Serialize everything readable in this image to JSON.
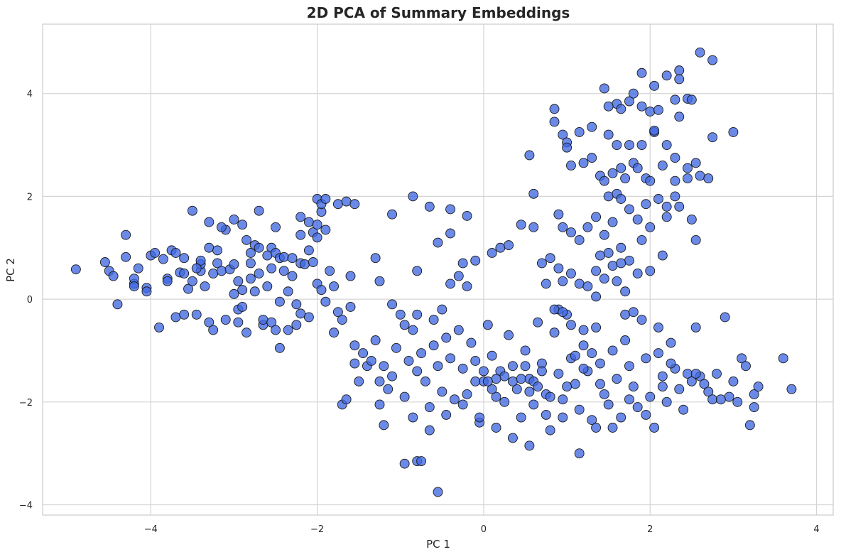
{
  "chart_data": {
    "type": "scatter",
    "title": "2D PCA of Summary Embeddings",
    "xlabel": "PC 1",
    "ylabel": "PC 2",
    "xlim": [
      -5.3,
      4.2
    ],
    "ylim": [
      -4.2,
      5.35
    ],
    "xticks": [
      -4,
      -2,
      0,
      2,
      4
    ],
    "yticks": [
      -4,
      -2,
      0,
      2,
      4
    ],
    "xtick_labels": [
      "−4",
      "−2",
      "0",
      "2",
      "4"
    ],
    "ytick_labels": [
      "−4",
      "−2",
      "0",
      "2",
      "4"
    ],
    "grid": true,
    "colors": {
      "point_fill": "#4169e1",
      "point_edge": "#1a1a1a",
      "grid": "#d4d4d4",
      "axes": "#cccccc",
      "text": "#262626"
    },
    "points": [
      [
        -4.9,
        0.58
      ],
      [
        -4.55,
        0.72
      ],
      [
        -4.5,
        0.55
      ],
      [
        -4.45,
        0.45
      ],
      [
        -4.4,
        -0.1
      ],
      [
        -4.3,
        0.82
      ],
      [
        -4.3,
        1.25
      ],
      [
        -4.2,
        0.3
      ],
      [
        -4.2,
        0.4
      ],
      [
        -4.2,
        0.25
      ],
      [
        -4.15,
        0.6
      ],
      [
        -4.05,
        0.22
      ],
      [
        -4.05,
        0.15
      ],
      [
        -4.0,
        0.85
      ],
      [
        -3.95,
        0.9
      ],
      [
        -3.9,
        -0.55
      ],
      [
        -3.85,
        0.78
      ],
      [
        -3.8,
        0.4
      ],
      [
        -3.8,
        0.35
      ],
      [
        -3.75,
        0.95
      ],
      [
        -3.7,
        0.9
      ],
      [
        -3.7,
        -0.35
      ],
      [
        -3.65,
        0.52
      ],
      [
        -3.6,
        0.8
      ],
      [
        -3.55,
        0.2
      ],
      [
        -3.5,
        0.35
      ],
      [
        -3.45,
        -0.3
      ],
      [
        -3.4,
        0.55
      ],
      [
        -3.4,
        0.68
      ],
      [
        -3.4,
        0.75
      ],
      [
        -3.35,
        0.25
      ],
      [
        -3.3,
        1.0
      ],
      [
        -3.25,
        0.5
      ],
      [
        -3.2,
        0.7
      ],
      [
        -3.15,
        0.55
      ],
      [
        -3.1,
        1.35
      ],
      [
        -3.05,
        0.58
      ],
      [
        -3.0,
        0.68
      ],
      [
        -2.95,
        -0.45
      ],
      [
        -2.95,
        -0.2
      ],
      [
        -2.95,
        0.35
      ],
      [
        -2.9,
        0.18
      ],
      [
        -2.85,
        1.15
      ],
      [
        -2.8,
        0.4
      ],
      [
        -2.8,
        0.7
      ],
      [
        -2.75,
        1.05
      ],
      [
        -2.7,
        0.5
      ],
      [
        -2.7,
        1.0
      ],
      [
        -2.65,
        -0.5
      ],
      [
        -2.6,
        0.25
      ],
      [
        -2.55,
        0.6
      ],
      [
        -2.55,
        1.0
      ],
      [
        -2.5,
        1.4
      ],
      [
        -2.45,
        -0.05
      ],
      [
        -2.4,
        0.55
      ],
      [
        -2.35,
        0.15
      ],
      [
        -2.3,
        0.45
      ],
      [
        -2.25,
        -0.1
      ],
      [
        -2.2,
        0.7
      ],
      [
        -2.15,
        0.68
      ],
      [
        -2.1,
        0.95
      ],
      [
        -2.05,
        0.72
      ],
      [
        -2.0,
        0.3
      ],
      [
        -1.95,
        0.18
      ],
      [
        -1.9,
        -0.05
      ],
      [
        -1.85,
        0.55
      ],
      [
        -1.8,
        0.25
      ],
      [
        -1.75,
        -0.25
      ],
      [
        -1.7,
        -0.4
      ],
      [
        -1.6,
        0.45
      ],
      [
        -3.5,
        1.72
      ],
      [
        -3.3,
        1.5
      ],
      [
        -3.15,
        1.4
      ],
      [
        -3.0,
        1.55
      ],
      [
        -2.9,
        1.45
      ],
      [
        -2.7,
        1.72
      ],
      [
        -2.6,
        0.85
      ],
      [
        -2.5,
        0.9
      ],
      [
        -2.45,
        0.8
      ],
      [
        -2.4,
        0.82
      ],
      [
        -2.3,
        0.8
      ],
      [
        -2.2,
        1.25
      ],
      [
        -2.2,
        1.6
      ],
      [
        -2.1,
        1.5
      ],
      [
        -2.05,
        1.3
      ],
      [
        -2.0,
        1.45
      ],
      [
        -2.0,
        1.95
      ],
      [
        -1.95,
        1.7
      ],
      [
        -1.95,
        1.85
      ],
      [
        -1.9,
        1.95
      ],
      [
        -3.6,
        -0.3
      ],
      [
        -3.3,
        -0.45
      ],
      [
        -3.25,
        -0.6
      ],
      [
        -3.1,
        -0.4
      ],
      [
        -2.9,
        -0.15
      ],
      [
        -2.85,
        -0.65
      ],
      [
        -2.65,
        -0.4
      ],
      [
        -2.55,
        -0.45
      ],
      [
        -2.5,
        -0.6
      ],
      [
        -2.35,
        -0.6
      ],
      [
        -2.25,
        -0.5
      ],
      [
        -2.2,
        -0.28
      ],
      [
        -2.1,
        -0.35
      ],
      [
        -2.45,
        -0.95
      ],
      [
        -2.8,
        0.9
      ],
      [
        -3.2,
        0.95
      ],
      [
        -3.45,
        0.6
      ],
      [
        -3.6,
        0.5
      ],
      [
        -3.0,
        0.1
      ],
      [
        -2.75,
        0.15
      ],
      [
        -2.0,
        1.2
      ],
      [
        -1.9,
        1.35
      ],
      [
        -1.75,
        1.85
      ],
      [
        -1.65,
        1.9
      ],
      [
        -1.55,
        1.85
      ],
      [
        -1.1,
        1.65
      ],
      [
        -0.85,
        2.0
      ],
      [
        -0.65,
        1.8
      ],
      [
        -0.4,
        1.75
      ],
      [
        -0.2,
        1.62
      ],
      [
        -0.8,
        0.55
      ],
      [
        -0.55,
        1.1
      ],
      [
        -0.4,
        1.28
      ],
      [
        -0.25,
        0.7
      ],
      [
        -0.1,
        0.75
      ],
      [
        0.1,
        0.9
      ],
      [
        0.2,
        1.0
      ],
      [
        0.3,
        1.05
      ],
      [
        0.45,
        1.45
      ],
      [
        0.6,
        1.4
      ],
      [
        -1.3,
        0.8
      ],
      [
        -1.25,
        0.35
      ],
      [
        -1.1,
        -0.1
      ],
      [
        -0.95,
        -0.5
      ],
      [
        -0.8,
        -0.3
      ],
      [
        -0.6,
        -0.4
      ],
      [
        -0.5,
        -0.2
      ],
      [
        -0.4,
        0.3
      ],
      [
        -0.3,
        0.45
      ],
      [
        -0.2,
        0.25
      ],
      [
        -1.8,
        -0.65
      ],
      [
        -1.6,
        -0.15
      ],
      [
        -1.55,
        -0.9
      ],
      [
        -1.5,
        -1.6
      ],
      [
        -1.45,
        -1.05
      ],
      [
        -1.4,
        -1.3
      ],
      [
        -1.35,
        -1.2
      ],
      [
        -1.3,
        -0.8
      ],
      [
        -1.25,
        -1.6
      ],
      [
        -1.2,
        -1.3
      ],
      [
        -1.15,
        -1.75
      ],
      [
        -1.1,
        -1.5
      ],
      [
        -1.05,
        -0.95
      ],
      [
        -1.0,
        -0.3
      ],
      [
        -0.95,
        -1.9
      ],
      [
        -0.9,
        -1.2
      ],
      [
        -0.85,
        -0.6
      ],
      [
        -0.8,
        -1.4
      ],
      [
        -0.75,
        -1.05
      ],
      [
        -0.7,
        -1.6
      ],
      [
        -0.65,
        -2.1
      ],
      [
        -0.6,
        -0.9
      ],
      [
        -0.55,
        -1.3
      ],
      [
        -0.5,
        -1.8
      ],
      [
        -0.45,
        -0.75
      ],
      [
        -0.4,
        -1.15
      ],
      [
        -0.35,
        -1.95
      ],
      [
        -0.3,
        -0.6
      ],
      [
        -0.25,
        -1.35
      ],
      [
        -0.2,
        -1.85
      ],
      [
        -0.15,
        -0.85
      ],
      [
        -0.1,
        -1.2
      ],
      [
        -0.05,
        -2.4
      ],
      [
        0.0,
        -1.6
      ],
      [
        0.05,
        -0.5
      ],
      [
        0.1,
        -1.1
      ],
      [
        0.15,
        -1.9
      ],
      [
        0.2,
        -1.4
      ],
      [
        0.25,
        -2.0
      ],
      [
        0.3,
        -0.7
      ],
      [
        0.35,
        -1.3
      ],
      [
        0.4,
        -1.75
      ],
      [
        0.45,
        -2.3
      ],
      [
        0.5,
        -1.0
      ],
      [
        0.55,
        -1.55
      ],
      [
        0.6,
        -2.05
      ],
      [
        0.65,
        -0.45
      ],
      [
        0.7,
        -1.25
      ],
      [
        0.75,
        -1.85
      ],
      [
        0.8,
        -2.55
      ],
      [
        0.85,
        -0.65
      ],
      [
        0.9,
        -1.45
      ],
      [
        0.95,
        -1.95
      ],
      [
        1.0,
        -0.3
      ],
      [
        1.05,
        -1.15
      ],
      [
        1.1,
        -1.65
      ],
      [
        1.15,
        -2.15
      ],
      [
        1.2,
        -0.9
      ],
      [
        1.25,
        -1.4
      ],
      [
        1.3,
        -2.35
      ],
      [
        1.35,
        -0.55
      ],
      [
        1.4,
        -1.25
      ],
      [
        1.45,
        -1.85
      ],
      [
        1.5,
        -2.05
      ],
      [
        1.55,
        -1.0
      ],
      [
        1.6,
        -1.55
      ],
      [
        1.65,
        -2.3
      ],
      [
        1.7,
        -0.8
      ],
      [
        1.75,
        -1.3
      ],
      [
        1.8,
        -1.7
      ],
      [
        1.85,
        -2.1
      ],
      [
        1.9,
        -0.4
      ],
      [
        1.95,
        -1.15
      ],
      [
        2.0,
        -1.9
      ],
      [
        2.05,
        -2.5
      ],
      [
        2.1,
        -1.05
      ],
      [
        2.15,
        -1.5
      ],
      [
        2.2,
        -2.0
      ],
      [
        2.25,
        -0.85
      ],
      [
        2.3,
        -1.35
      ],
      [
        2.35,
        -1.75
      ],
      [
        2.4,
        -2.15
      ],
      [
        2.45,
        -1.45
      ],
      [
        2.5,
        -1.6
      ],
      [
        2.55,
        -0.55
      ],
      [
        2.6,
        -1.5
      ],
      [
        2.65,
        -1.65
      ],
      [
        2.7,
        -1.8
      ],
      [
        2.75,
        -1.95
      ],
      [
        2.8,
        -1.45
      ],
      [
        2.9,
        -0.35
      ],
      [
        2.95,
        -1.9
      ],
      [
        3.0,
        -1.6
      ],
      [
        3.05,
        -2.0
      ],
      [
        3.1,
        -1.15
      ],
      [
        3.15,
        -1.3
      ],
      [
        3.2,
        -2.45
      ],
      [
        3.25,
        -1.85
      ],
      [
        3.3,
        -1.7
      ],
      [
        3.6,
        -1.15
      ],
      [
        3.7,
        -1.75
      ],
      [
        3.25,
        -2.1
      ],
      [
        2.85,
        -1.95
      ],
      [
        2.55,
        -1.45
      ],
      [
        2.25,
        -1.25
      ],
      [
        2.15,
        -1.7
      ],
      [
        1.95,
        -2.25
      ],
      [
        1.75,
        -1.95
      ],
      [
        1.55,
        -2.5
      ],
      [
        1.35,
        -2.5
      ],
      [
        1.15,
        -3.0
      ],
      [
        0.95,
        -2.3
      ],
      [
        0.75,
        -2.25
      ],
      [
        0.55,
        -2.85
      ],
      [
        0.35,
        -2.7
      ],
      [
        0.15,
        -2.5
      ],
      [
        -0.05,
        -2.3
      ],
      [
        -0.25,
        -2.05
      ],
      [
        -0.45,
        -2.25
      ],
      [
        -0.65,
        -2.55
      ],
      [
        -0.85,
        -2.3
      ],
      [
        -0.95,
        -3.2
      ],
      [
        -0.8,
        -3.15
      ],
      [
        -0.75,
        -3.15
      ],
      [
        -0.55,
        -3.75
      ],
      [
        -1.2,
        -2.45
      ],
      [
        -1.25,
        -2.05
      ],
      [
        -1.7,
        -2.05
      ],
      [
        -1.65,
        -1.95
      ],
      [
        -1.55,
        -1.25
      ],
      [
        0.5,
        -1.3
      ],
      [
        0.6,
        -1.6
      ],
      [
        0.7,
        -1.4
      ],
      [
        0.8,
        -1.9
      ],
      [
        0.9,
        -0.2
      ],
      [
        1.0,
        -1.7
      ],
      [
        1.1,
        -1.1
      ],
      [
        1.2,
        -1.35
      ],
      [
        1.3,
        -1.05
      ],
      [
        1.4,
        -1.65
      ],
      [
        0.25,
        -1.5
      ],
      [
        0.15,
        -1.55
      ],
      [
        0.1,
        -1.75
      ],
      [
        0.05,
        -1.6
      ],
      [
        0.0,
        -1.4
      ],
      [
        -0.1,
        -1.6
      ],
      [
        0.35,
        -1.6
      ],
      [
        0.45,
        -1.55
      ],
      [
        0.55,
        -1.8
      ],
      [
        0.65,
        -1.7
      ],
      [
        1.9,
        4.4
      ],
      [
        2.05,
        4.15
      ],
      [
        2.2,
        4.35
      ],
      [
        2.35,
        4.45
      ],
      [
        2.35,
        4.28
      ],
      [
        2.6,
        4.8
      ],
      [
        2.75,
        4.65
      ],
      [
        2.45,
        3.9
      ],
      [
        2.5,
        3.88
      ],
      [
        1.6,
        3.8
      ],
      [
        1.75,
        3.85
      ],
      [
        1.9,
        3.75
      ],
      [
        2.0,
        3.65
      ],
      [
        2.1,
        3.68
      ],
      [
        2.3,
        3.88
      ],
      [
        2.35,
        3.55
      ],
      [
        1.45,
        4.1
      ],
      [
        1.5,
        3.75
      ],
      [
        1.65,
        3.7
      ],
      [
        1.8,
        4.0
      ],
      [
        0.85,
        3.7
      ],
      [
        0.85,
        3.45
      ],
      [
        0.95,
        3.2
      ],
      [
        1.0,
        3.05
      ],
      [
        1.0,
        2.95
      ],
      [
        1.15,
        3.25
      ],
      [
        1.3,
        3.35
      ],
      [
        1.5,
        3.2
      ],
      [
        1.6,
        3.0
      ],
      [
        1.75,
        3.0
      ],
      [
        1.9,
        3.0
      ],
      [
        2.05,
        3.25
      ],
      [
        2.05,
        3.28
      ],
      [
        2.2,
        3.0
      ],
      [
        2.3,
        2.75
      ],
      [
        2.45,
        2.55
      ],
      [
        2.55,
        2.65
      ],
      [
        2.75,
        3.15
      ],
      [
        3.0,
        3.25
      ],
      [
        2.6,
        2.4
      ],
      [
        0.55,
        2.8
      ],
      [
        0.6,
        2.05
      ],
      [
        1.05,
        2.6
      ],
      [
        1.2,
        2.65
      ],
      [
        1.3,
        2.75
      ],
      [
        1.4,
        2.4
      ],
      [
        1.45,
        2.3
      ],
      [
        1.55,
        2.45
      ],
      [
        1.65,
        2.55
      ],
      [
        1.7,
        2.35
      ],
      [
        1.8,
        2.65
      ],
      [
        1.85,
        2.55
      ],
      [
        1.95,
        2.35
      ],
      [
        2.0,
        2.3
      ],
      [
        2.15,
        2.6
      ],
      [
        2.3,
        2.3
      ],
      [
        2.45,
        2.35
      ],
      [
        2.7,
        2.35
      ],
      [
        1.5,
        2.0
      ],
      [
        1.6,
        2.05
      ],
      [
        1.65,
        1.95
      ],
      [
        1.75,
        1.75
      ],
      [
        1.85,
        1.55
      ],
      [
        1.95,
        1.85
      ],
      [
        2.1,
        1.95
      ],
      [
        2.2,
        1.8
      ],
      [
        2.3,
        2.0
      ],
      [
        2.35,
        1.8
      ],
      [
        2.5,
        1.55
      ],
      [
        2.55,
        1.15
      ],
      [
        0.9,
        1.65
      ],
      [
        0.95,
        1.4
      ],
      [
        1.05,
        1.3
      ],
      [
        1.15,
        1.15
      ],
      [
        1.25,
        1.4
      ],
      [
        1.35,
        1.6
      ],
      [
        1.45,
        1.25
      ],
      [
        1.55,
        1.5
      ],
      [
        1.65,
        1.0
      ],
      [
        1.75,
        0.75
      ],
      [
        0.8,
        0.8
      ],
      [
        0.9,
        0.6
      ],
      [
        0.95,
        0.35
      ],
      [
        1.05,
        0.5
      ],
      [
        1.15,
        0.3
      ],
      [
        1.25,
        0.25
      ],
      [
        1.35,
        0.55
      ],
      [
        1.45,
        0.4
      ],
      [
        1.55,
        0.65
      ],
      [
        1.65,
        0.7
      ],
      [
        0.7,
        0.7
      ],
      [
        0.75,
        0.3
      ],
      [
        0.85,
        -0.2
      ],
      [
        0.95,
        -0.25
      ],
      [
        1.05,
        -0.5
      ],
      [
        1.2,
        -0.6
      ],
      [
        1.35,
        0.05
      ],
      [
        1.6,
        0.35
      ],
      [
        1.7,
        0.15
      ],
      [
        1.85,
        0.5
      ],
      [
        2.0,
        0.55
      ],
      [
        2.15,
        0.85
      ],
      [
        1.4,
        0.85
      ],
      [
        1.5,
        0.9
      ],
      [
        1.9,
        1.15
      ],
      [
        2.0,
        1.4
      ],
      [
        2.2,
        1.6
      ],
      [
        1.7,
        -0.3
      ],
      [
        1.8,
        -0.25
      ],
      [
        2.1,
        -0.55
      ]
    ]
  }
}
